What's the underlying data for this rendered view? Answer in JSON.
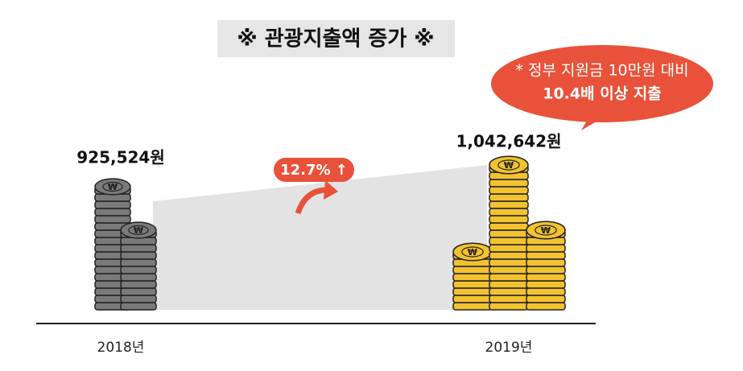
{
  "chart_data": {
    "type": "coin-stack",
    "title": "※ 관광지출액 증가 ※",
    "categories": [
      "2018년",
      "2019년"
    ],
    "values": [
      925524,
      1042642
    ],
    "value_labels": [
      "925,524원",
      "1,042,642원"
    ],
    "colors": [
      "#7a7a7a",
      "#f2c230"
    ],
    "growth_label": "12.7% ↑",
    "callout": [
      "* 정부 지원금 10만원 대비",
      "10.4배 이상 지출"
    ]
  }
}
